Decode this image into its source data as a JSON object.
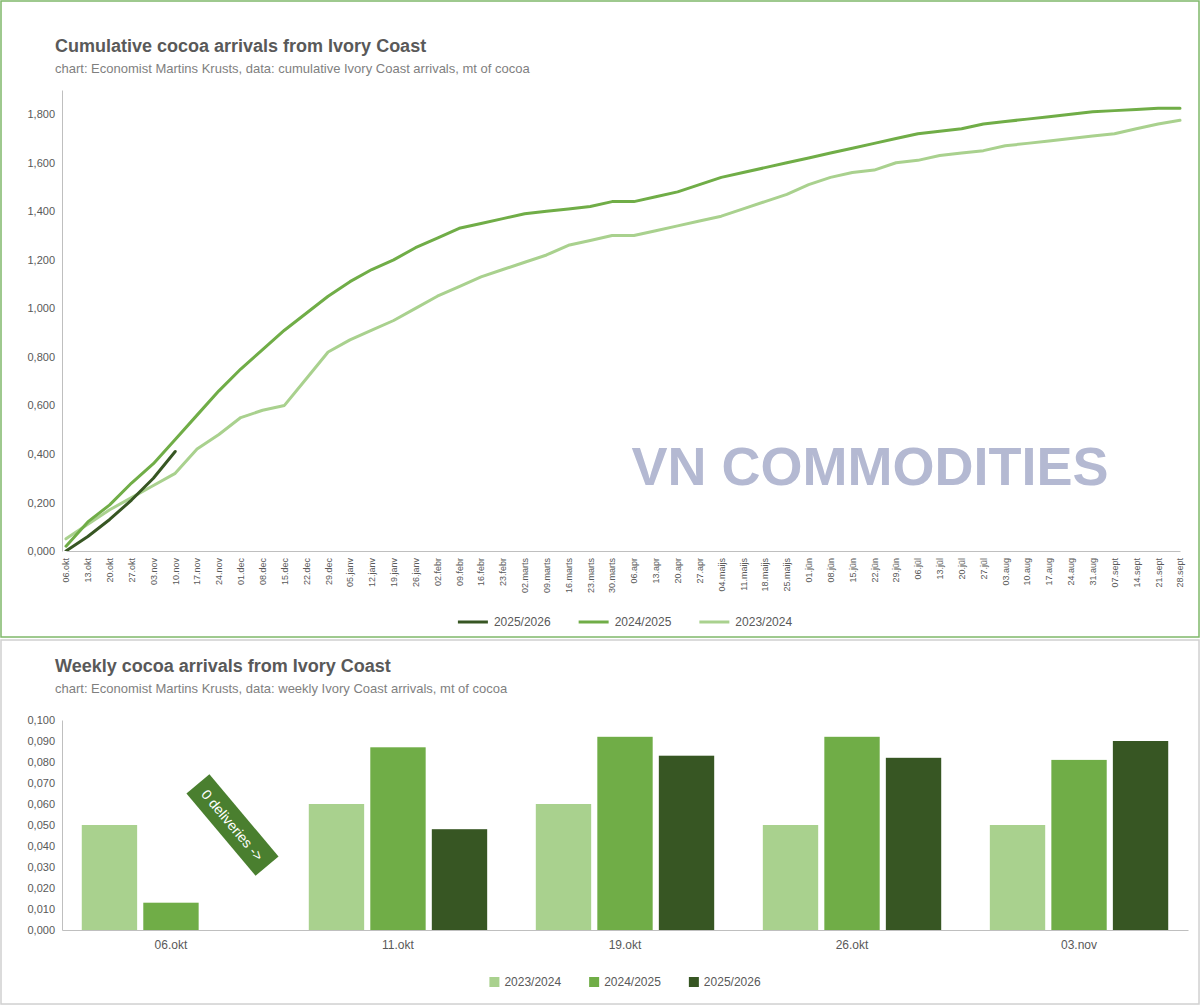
{
  "watermark": "VN COMMODITIES",
  "chart_data": [
    {
      "type": "line",
      "title": "Cumulative cocoa arrivals from Ivory Coast",
      "subtitle": "chart: Economist Martins Krusts, data: cumulative Ivory Coast arrivals, mt of cocoa",
      "categories": [
        "06.okt",
        "13.okt",
        "20.okt",
        "27.okt",
        "03.nov",
        "10.nov",
        "17.nov",
        "24.nov",
        "01.dec",
        "08.dec",
        "15.dec",
        "22.dec",
        "29.dec",
        "05.janv",
        "12.janv",
        "19.janv",
        "26.janv",
        "02.febr",
        "09.febr",
        "16.febr",
        "23.febr",
        "02.marts",
        "09.marts",
        "16.marts",
        "23.marts",
        "30.marts",
        "06.apr",
        "13.apr",
        "20.apr",
        "27.apr",
        "04.maijs",
        "11.maijs",
        "18.maijs",
        "25.maijs",
        "01.jūn",
        "08.jūn",
        "15.jūn",
        "22.jūn",
        "29.jūn",
        "06.jūl",
        "13.jūl",
        "20.jūl",
        "27.jūl",
        "03.aug",
        "10.aug",
        "17.aug",
        "24.aug",
        "31.aug",
        "07.sept",
        "14.sept",
        "21.sept",
        "28.sept"
      ],
      "series": [
        {
          "name": "2025/2026",
          "color": "#375623",
          "values": [
            0.0,
            0.06,
            0.13,
            0.21,
            0.3,
            0.41,
            null,
            null,
            null,
            null,
            null,
            null,
            null,
            null,
            null,
            null,
            null,
            null,
            null,
            null,
            null,
            null,
            null,
            null,
            null,
            null,
            null,
            null,
            null,
            null,
            null,
            null,
            null,
            null,
            null,
            null,
            null,
            null,
            null,
            null,
            null,
            null,
            null,
            null,
            null,
            null,
            null,
            null,
            null,
            null,
            null,
            null
          ]
        },
        {
          "name": "2024/2025",
          "color": "#70ad47",
          "values": [
            0.02,
            0.12,
            0.19,
            0.28,
            0.36,
            0.46,
            0.56,
            0.66,
            0.75,
            0.83,
            0.91,
            0.98,
            1.05,
            1.11,
            1.16,
            1.2,
            1.25,
            1.29,
            1.33,
            1.35,
            1.37,
            1.39,
            1.4,
            1.41,
            1.42,
            1.44,
            1.44,
            1.46,
            1.48,
            1.51,
            1.54,
            1.56,
            1.58,
            1.6,
            1.62,
            1.64,
            1.66,
            1.68,
            1.7,
            1.72,
            1.73,
            1.74,
            1.76,
            1.77,
            1.78,
            1.79,
            1.8,
            1.81,
            1.815,
            1.82,
            1.825,
            1.825
          ]
        },
        {
          "name": "2023/2024",
          "color": "#a9d18e",
          "values": [
            0.05,
            0.11,
            0.17,
            0.22,
            0.27,
            0.32,
            0.42,
            0.48,
            0.55,
            0.58,
            0.6,
            0.71,
            0.82,
            0.87,
            0.91,
            0.95,
            1.0,
            1.05,
            1.09,
            1.13,
            1.16,
            1.19,
            1.22,
            1.26,
            1.28,
            1.3,
            1.3,
            1.32,
            1.34,
            1.36,
            1.38,
            1.41,
            1.44,
            1.47,
            1.51,
            1.54,
            1.56,
            1.57,
            1.6,
            1.61,
            1.63,
            1.64,
            1.65,
            1.67,
            1.68,
            1.69,
            1.7,
            1.71,
            1.72,
            1.74,
            1.76,
            1.775
          ]
        }
      ],
      "ylim": [
        0,
        1.9
      ],
      "yticks": [
        {
          "value": 0,
          "label": "0,000"
        },
        {
          "value": 0.2,
          "label": "0,200"
        },
        {
          "value": 0.4,
          "label": "0,400"
        },
        {
          "value": 0.6,
          "label": "0,600"
        },
        {
          "value": 0.8,
          "label": "0,800"
        },
        {
          "value": 1.0,
          "label": "1,000"
        },
        {
          "value": 1.2,
          "label": "1,200"
        },
        {
          "value": 1.4,
          "label": "1,400"
        },
        {
          "value": 1.6,
          "label": "1,600"
        },
        {
          "value": 1.8,
          "label": "1,800"
        }
      ],
      "grid": false,
      "legend": "bottom"
    },
    {
      "type": "bar",
      "title": "Weekly cocoa arrivals from Ivory Coast",
      "subtitle": "chart: Economist Martins Krusts, data: weekly Ivory Coast arrivals, mt of cocoa",
      "categories": [
        "06.okt",
        "11.okt",
        "19.okt",
        "26.okt",
        "03.nov"
      ],
      "series": [
        {
          "name": "2023/2024",
          "color": "#a9d18e",
          "values": [
            0.05,
            0.06,
            0.06,
            0.05,
            0.05
          ]
        },
        {
          "name": "2024/2025",
          "color": "#70ad47",
          "values": [
            0.013,
            0.087,
            0.092,
            0.092,
            0.081
          ]
        },
        {
          "name": "2025/2026",
          "color": "#375623",
          "values": [
            0,
            0.048,
            0.083,
            0.082,
            0.09
          ]
        }
      ],
      "ylim": [
        0,
        0.1
      ],
      "yticks": [
        {
          "value": 0,
          "label": "0,000"
        },
        {
          "value": 0.01,
          "label": "0,010"
        },
        {
          "value": 0.02,
          "label": "0,020"
        },
        {
          "value": 0.03,
          "label": "0,030"
        },
        {
          "value": 0.04,
          "label": "0,040"
        },
        {
          "value": 0.05,
          "label": "0,050"
        },
        {
          "value": 0.06,
          "label": "0,060"
        },
        {
          "value": 0.07,
          "label": "0,070"
        },
        {
          "value": 0.08,
          "label": "0,080"
        },
        {
          "value": 0.09,
          "label": "0,090"
        },
        {
          "value": 0.1,
          "label": "0,100"
        }
      ],
      "annotations": [
        "0 deliveries ->"
      ],
      "grid": false,
      "legend": "bottom"
    }
  ]
}
